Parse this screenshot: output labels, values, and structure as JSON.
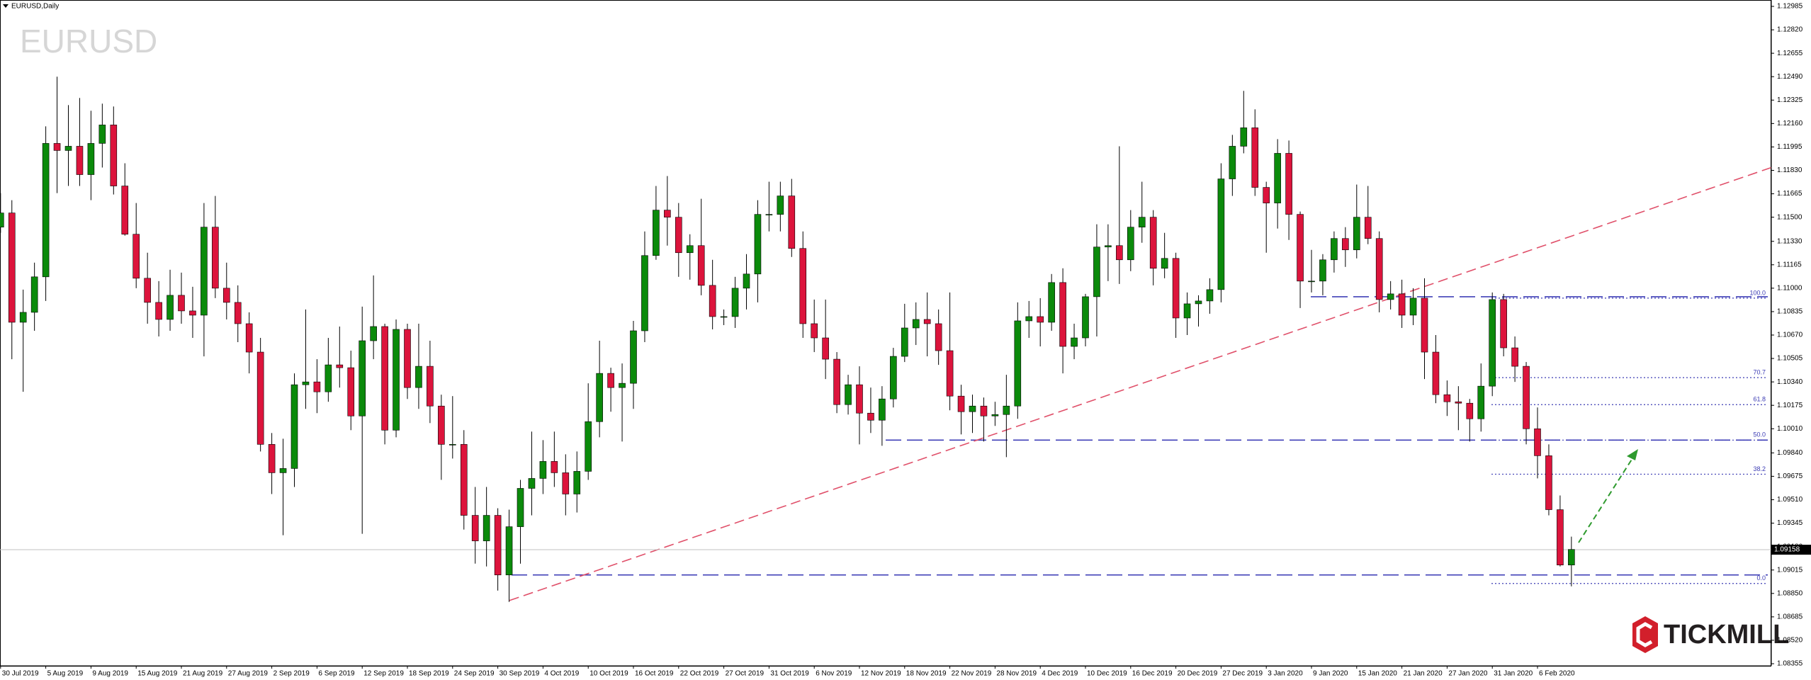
{
  "chart_data": {
    "type": "candlestick",
    "title": "EURUSD,Daily",
    "watermark": "EURUSD",
    "categories": [
      "30 Jul 2019",
      null,
      null,
      null,
      "5 Aug 2019",
      null,
      null,
      null,
      "9 Aug 2019",
      null,
      null,
      null,
      "15 Aug 2019",
      null,
      null,
      null,
      "21 Aug 2019",
      null,
      null,
      null,
      "27 Aug 2019",
      null,
      null,
      null,
      "2 Sep 2019",
      null,
      null,
      null,
      "6 Sep 2019",
      null,
      null,
      null,
      "12 Sep 2019",
      null,
      null,
      null,
      "18 Sep 2019",
      null,
      null,
      null,
      "24 Sep 2019",
      null,
      null,
      null,
      "30 Sep 2019",
      null,
      null,
      null,
      "4 Oct 2019",
      null,
      null,
      null,
      "10 Oct 2019",
      null,
      null,
      null,
      "16 Oct 2019",
      null,
      null,
      null,
      "22 Oct 2019",
      null,
      null,
      null,
      "27 Oct 2019",
      null,
      null,
      null,
      "31 Oct 2019",
      null,
      null,
      null,
      "6 Nov 2019",
      null,
      null,
      null,
      "12 Nov 2019",
      null,
      null,
      null,
      "18 Nov 2019",
      null,
      null,
      null,
      "22 Nov 2019",
      null,
      null,
      null,
      "28 Nov 2019",
      null,
      null,
      null,
      "4 Dec 2019",
      null,
      null,
      null,
      "10 Dec 2019",
      null,
      null,
      null,
      "16 Dec 2019",
      null,
      null,
      null,
      "20 Dec 2019",
      null,
      null,
      null,
      "27 Dec 2019",
      null,
      null,
      null,
      "3 Jan 2020",
      null,
      null,
      null,
      "9 Jan 2020",
      null,
      null,
      null,
      "15 Jan 2020",
      null,
      null,
      null,
      "21 Jan 2020",
      null,
      null,
      null,
      "27 Jan 2020",
      null,
      null,
      null,
      "31 Jan 2020",
      null,
      null,
      null,
      "6 Feb 2020",
      null,
      null,
      null
    ],
    "open": [
      1.1143,
      1.1153,
      1.1076,
      1.1083,
      1.1108,
      1.1202,
      1.1197,
      1.12,
      1.118,
      1.1202,
      1.1215,
      1.1172,
      1.1138,
      1.1107,
      1.109,
      1.1078,
      1.1095,
      1.1084,
      1.1081,
      1.1143,
      1.11,
      1.109,
      1.1075,
      1.1055,
      1.099,
      1.097,
      1.0973,
      1.1032,
      1.1034,
      1.1027,
      1.1046,
      1.1044,
      1.101,
      1.1063,
      1.1073,
      1.1,
      1.1071,
      1.103,
      1.1045,
      1.1017,
      1.099,
      1.099,
      1.094,
      1.0922,
      1.094,
      1.0898,
      1.0932,
      1.0959,
      1.0966,
      1.0978,
      1.097,
      1.0955,
      1.0971,
      1.1006,
      1.104,
      1.103,
      1.1033,
      1.107,
      1.1123,
      1.1155,
      1.115,
      1.1125,
      1.113,
      1.1102,
      1.108,
      1.108,
      1.11,
      1.111,
      1.1152,
      1.1152,
      1.1165,
      1.1128,
      1.1075,
      1.1065,
      1.105,
      1.1018,
      1.1032,
      1.1012,
      1.1007,
      1.1022,
      1.1052,
      1.1072,
      1.1078,
      1.1075,
      1.1056,
      1.1024,
      1.1013,
      1.1017,
      1.101,
      1.1011,
      1.1017,
      1.1077,
      1.108,
      1.1076,
      1.1104,
      1.1059,
      1.1065,
      1.1094,
      1.1129,
      1.113,
      1.112,
      1.1143,
      1.115,
      1.1114,
      1.1121,
      1.1079,
      1.1089,
      1.1091,
      1.1099,
      1.1177,
      1.12,
      1.1213,
      1.1171,
      1.116,
      1.1195,
      1.1152,
      1.1105,
      1.1105,
      1.112,
      1.1135,
      1.1127,
      1.115,
      1.1135,
      1.1092,
      1.1096,
      1.1081,
      1.1093,
      1.1055,
      1.1025,
      1.102,
      1.1019,
      1.1008,
      1.1031,
      1.1092,
      1.1058,
      1.1045,
      1.1001,
      1.0982,
      1.0944,
      1.0905
    ],
    "high": [
      1.1167,
      1.1162,
      1.1099,
      1.1118,
      1.1214,
      1.1249,
      1.1229,
      1.1234,
      1.1225,
      1.123,
      1.1228,
      1.1188,
      1.116,
      1.1125,
      1.1105,
      1.1113,
      1.1111,
      1.1101,
      1.116,
      1.1165,
      1.1118,
      1.1102,
      1.1083,
      1.1065,
      1.0998,
      1.0994,
      1.104,
      1.1085,
      1.105,
      1.1065,
      1.1073,
      1.1056,
      1.1087,
      1.1109,
      1.1075,
      1.1078,
      1.1075,
      1.1075,
      1.1063,
      1.1025,
      1.1024,
      1.1,
      1.096,
      1.096,
      1.0945,
      1.0944,
      1.0965,
      1.0999,
      1.0993,
      1.0999,
      1.0983,
      1.0985,
      1.1033,
      1.1063,
      1.1044,
      1.1047,
      1.1077,
      1.114,
      1.1172,
      1.1179,
      1.116,
      1.1138,
      1.1163,
      1.112,
      1.1085,
      1.1108,
      1.1124,
      1.1162,
      1.1175,
      1.1175,
      1.1177,
      1.114,
      1.1092,
      1.1092,
      1.1055,
      1.1039,
      1.1045,
      1.103,
      1.1031,
      1.1058,
      1.1089,
      1.109,
      1.1097,
      1.1085,
      1.1097,
      1.1032,
      1.1025,
      1.1023,
      1.102,
      1.1039,
      1.109,
      1.1091,
      1.1093,
      1.111,
      1.1114,
      1.1075,
      1.1096,
      1.1145,
      1.1145,
      1.12,
      1.1155,
      1.1175,
      1.1155,
      1.1139,
      1.1125,
      1.1097,
      1.1095,
      1.1107,
      1.1188,
      1.1208,
      1.1239,
      1.1226,
      1.1175,
      1.1205,
      1.1204,
      1.1154,
      1.1127,
      1.1124,
      1.114,
      1.1143,
      1.1173,
      1.1172,
      1.114,
      1.1105,
      1.1106,
      1.11,
      1.1107,
      1.1067,
      1.1035,
      1.1031,
      1.1022,
      1.1047,
      1.1097,
      1.1096,
      1.1066,
      1.1048,
      1.1016,
      1.099,
      1.0954,
      1.0925
    ],
    "low": [
      1.1139,
      1.105,
      1.1027,
      1.107,
      1.1091,
      1.1167,
      1.1172,
      1.1172,
      1.1162,
      1.1185,
      1.1166,
      1.1137,
      1.11,
      1.1075,
      1.1066,
      1.107,
      1.1075,
      1.1065,
      1.1052,
      1.1093,
      1.1078,
      1.1062,
      1.104,
      1.0985,
      1.0955,
      1.0926,
      1.096,
      1.1015,
      1.1012,
      1.102,
      1.103,
      1.1,
      1.0927,
      1.105,
      1.099,
      1.0995,
      1.1022,
      1.1015,
      1.1005,
      1.0965,
      1.098,
      1.093,
      1.0906,
      1.0904,
      1.0887,
      1.0879,
      1.0906,
      1.094,
      1.0955,
      1.096,
      1.094,
      1.0942,
      1.0965,
      1.0995,
      1.1013,
      1.0992,
      1.1015,
      1.1062,
      1.112,
      1.113,
      1.1108,
      1.1106,
      1.1095,
      1.1071,
      1.1074,
      1.1072,
      1.1085,
      1.109,
      1.114,
      1.114,
      1.1122,
      1.1065,
      1.1055,
      1.1036,
      1.1012,
      1.1011,
      1.099,
      1.0998,
      1.0989,
      1.1016,
      1.1048,
      1.106,
      1.1052,
      1.1046,
      1.1014,
      1.0997,
      1.0998,
      1.0992,
      1.1003,
      1.0981,
      1.1008,
      1.1065,
      1.1059,
      1.107,
      1.104,
      1.105,
      1.1059,
      1.1066,
      1.1105,
      1.1103,
      1.1112,
      1.1132,
      1.1102,
      1.1107,
      1.1065,
      1.1067,
      1.1073,
      1.1082,
      1.109,
      1.1165,
      1.1195,
      1.1165,
      1.1125,
      1.1142,
      1.1134,
      1.1086,
      1.1097,
      1.1095,
      1.1111,
      1.1115,
      1.1121,
      1.1131,
      1.1083,
      1.1085,
      1.1072,
      1.1074,
      1.1036,
      1.1019,
      1.101,
      1.1,
      1.0992,
      1.0999,
      1.1024,
      1.1052,
      1.1034,
      1.099,
      1.0966,
      1.094,
      1.0904,
      1.089
    ],
    "close": [
      1.1153,
      1.1076,
      1.1083,
      1.1108,
      1.1202,
      1.1197,
      1.12,
      1.118,
      1.1202,
      1.1215,
      1.1172,
      1.1138,
      1.1107,
      1.109,
      1.1078,
      1.1095,
      1.1084,
      1.1081,
      1.1143,
      1.11,
      1.109,
      1.1075,
      1.1055,
      1.099,
      1.097,
      1.0973,
      1.1032,
      1.1034,
      1.1027,
      1.1046,
      1.1044,
      1.101,
      1.1063,
      1.1073,
      1.1,
      1.1071,
      1.103,
      1.1045,
      1.1017,
      1.099,
      1.099,
      1.094,
      1.0922,
      1.094,
      1.0898,
      1.0932,
      1.0959,
      1.0966,
      1.0978,
      1.097,
      1.0955,
      1.0971,
      1.1006,
      1.104,
      1.103,
      1.1033,
      1.107,
      1.1123,
      1.1155,
      1.115,
      1.1125,
      1.113,
      1.1102,
      1.108,
      1.108,
      1.11,
      1.111,
      1.1152,
      1.1152,
      1.1165,
      1.1128,
      1.1075,
      1.1065,
      1.105,
      1.1018,
      1.1032,
      1.1012,
      1.1007,
      1.1022,
      1.1052,
      1.1072,
      1.1078,
      1.1075,
      1.1056,
      1.1024,
      1.1013,
      1.1017,
      1.101,
      1.1011,
      1.1017,
      1.1077,
      1.108,
      1.1076,
      1.1104,
      1.1059,
      1.1065,
      1.1094,
      1.1129,
      1.113,
      1.112,
      1.1143,
      1.115,
      1.1114,
      1.1121,
      1.1079,
      1.1089,
      1.1091,
      1.1099,
      1.1177,
      1.12,
      1.1213,
      1.1171,
      1.116,
      1.1195,
      1.1152,
      1.1105,
      1.1105,
      1.112,
      1.1135,
      1.1127,
      1.115,
      1.1135,
      1.1092,
      1.1096,
      1.1081,
      1.1093,
      1.1055,
      1.1025,
      1.102,
      1.1019,
      1.1008,
      1.1031,
      1.1092,
      1.1058,
      1.1045,
      1.1001,
      1.0982,
      1.0944,
      1.0905,
      1.0916
    ],
    "up_color": "#0b8a0b",
    "down_color": "#dc143c",
    "ylim": [
      1.0834,
      1.1303
    ],
    "yticks": [
      1.12985,
      {
        "value": 1.1282,
        "label": "1.12820"
      },
      1.12655,
      {
        "value": 1.1249,
        "label": "1.12490"
      },
      1.12325,
      {
        "value": 1.1216,
        "label": "1.12160"
      },
      1.11995,
      {
        "value": 1.1183,
        "label": "1.11830"
      },
      1.11665,
      {
        "value": 1.115,
        "label": "1.11500"
      },
      {
        "value": 1.1133,
        "label": "1.11330"
      },
      1.11165,
      {
        "value": 1.11,
        "label": "1.11000"
      },
      1.10835,
      {
        "value": 1.1067,
        "label": "1.10670"
      },
      1.10505,
      {
        "value": 1.1034,
        "label": "1.10340"
      },
      1.10175,
      {
        "value": 1.1001,
        "label": "1.10010"
      },
      {
        "value": 1.0984,
        "label": "1.09840"
      },
      1.09675,
      {
        "value": 1.0951,
        "label": "1.09510"
      },
      1.09345,
      {
        "value": 1.0918,
        "label": "1.09180"
      },
      1.09015,
      {
        "value": 1.0885,
        "label": "1.08850"
      },
      1.08685,
      {
        "value": 1.0852,
        "label": "1.08520"
      },
      1.08355
    ],
    "last_price": 1.09158,
    "levels": {
      "color": "#4040b8",
      "values": [
        1.1094,
        1.0993,
        1.0898
      ]
    },
    "trendline": {
      "color": "#e0506a",
      "values": [
        1.088,
        1.1185
      ]
    },
    "fibonacci": {
      "color": "#3c3cb4",
      "labels": [
        "100.0",
        "70.7",
        "61.8",
        "50.0",
        "38.2",
        "0.0"
      ],
      "values": [
        1.1093,
        1.1037,
        1.1018,
        1.0993,
        1.0969,
        1.0892
      ]
    }
  },
  "logo": "TICKMILL"
}
